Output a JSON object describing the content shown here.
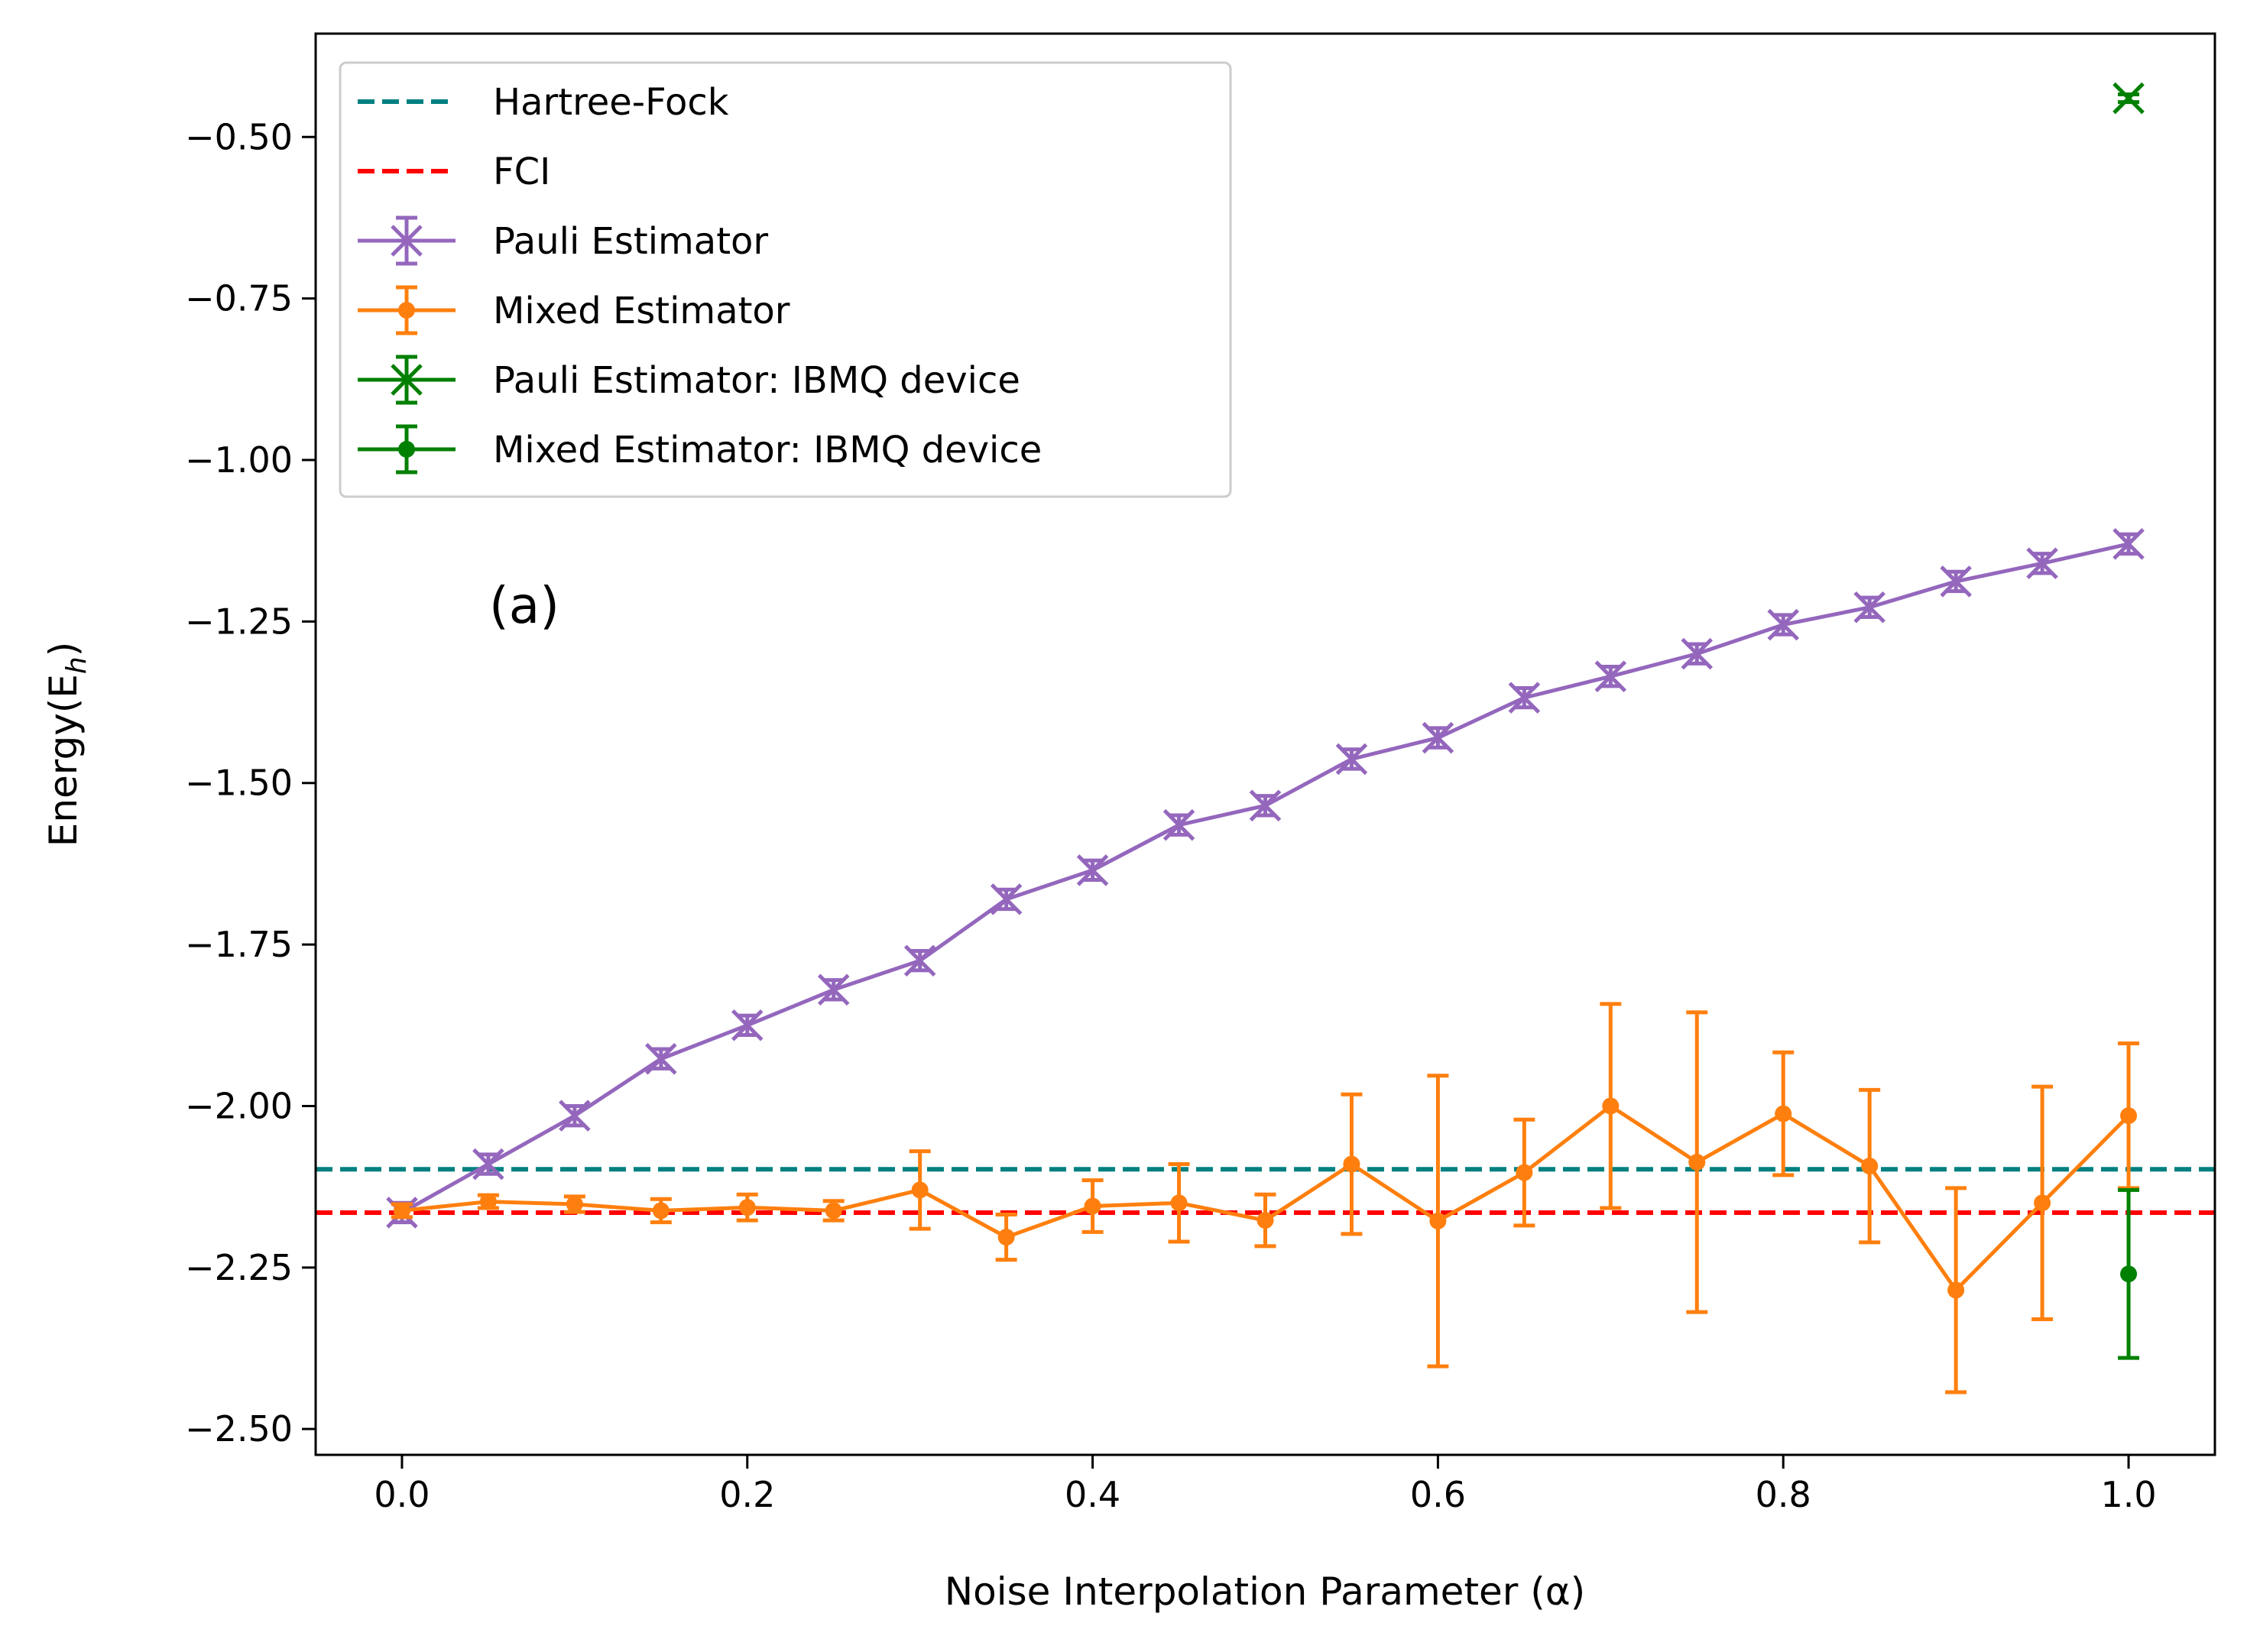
{
  "chart_data": {
    "type": "line",
    "title": "",
    "xlabel": "Noise Interpolation Parameter (α)",
    "ylabel_main": "Energy(E",
    "ylabel_sub": "h",
    "ylabel_close": ")",
    "annotation": "(a)",
    "xlim": [
      -0.05,
      1.05
    ],
    "ylim": [
      -2.54,
      -0.34
    ],
    "x_ticks": [
      0.0,
      0.2,
      0.4,
      0.6,
      0.8,
      1.0
    ],
    "x_tick_labels": [
      "0.0",
      "0.2",
      "0.4",
      "0.6",
      "0.8",
      "1.0"
    ],
    "y_ticks": [
      -0.5,
      -0.75,
      -1.0,
      -1.25,
      -1.5,
      -1.75,
      -2.0,
      -2.25,
      -2.5
    ],
    "y_tick_labels": [
      "−0.50",
      "−0.75",
      "−1.00",
      "−1.25",
      "−1.50",
      "−1.75",
      "−2.00",
      "−2.25",
      "−2.50"
    ],
    "grid": false,
    "legend_position": "top-left",
    "hlines": [
      {
        "name": "Hartree-Fock",
        "y": -2.098,
        "color": "#008080",
        "style": "dashed"
      },
      {
        "name": "FCI",
        "y": -2.165,
        "color": "#ff0000",
        "style": "dashed"
      }
    ],
    "series": [
      {
        "name": "Pauli Estimator",
        "color": "#9467bd",
        "marker": "x",
        "x": [
          0.0,
          0.05,
          0.1,
          0.15,
          0.2,
          0.25,
          0.3,
          0.35,
          0.4,
          0.45,
          0.5,
          0.55,
          0.6,
          0.65,
          0.7,
          0.75,
          0.8,
          0.85,
          0.9,
          0.95,
          1.0
        ],
        "y": [
          -2.165,
          -2.09,
          -2.015,
          -1.927,
          -1.875,
          -1.82,
          -1.775,
          -1.68,
          -1.635,
          -1.565,
          -1.535,
          -1.463,
          -1.43,
          -1.368,
          -1.335,
          -1.3,
          -1.255,
          -1.228,
          -1.188,
          -1.16,
          -1.13
        ],
        "yerr": [
          0.015,
          0.015,
          0.015,
          0.015,
          0.015,
          0.015,
          0.015,
          0.015,
          0.015,
          0.015,
          0.015,
          0.015,
          0.015,
          0.015,
          0.015,
          0.015,
          0.015,
          0.015,
          0.015,
          0.015,
          0.015
        ]
      },
      {
        "name": "Mixed Estimator",
        "color": "#ff7f0e",
        "marker": "dot",
        "x": [
          0.0,
          0.05,
          0.1,
          0.15,
          0.2,
          0.25,
          0.3,
          0.35,
          0.4,
          0.45,
          0.5,
          0.55,
          0.6,
          0.65,
          0.7,
          0.75,
          0.8,
          0.85,
          0.9,
          0.95,
          1.0
        ],
        "y": [
          -2.162,
          -2.148,
          -2.152,
          -2.162,
          -2.157,
          -2.162,
          -2.13,
          -2.203,
          -2.155,
          -2.15,
          -2.177,
          -2.09,
          -2.178,
          -2.103,
          -2.0,
          -2.087,
          -2.012,
          -2.093,
          -2.285,
          -2.15,
          -2.015
        ],
        "yerr": [
          0.01,
          0.01,
          0.012,
          0.018,
          0.02,
          0.015,
          0.06,
          0.035,
          0.04,
          0.06,
          0.04,
          0.108,
          0.225,
          0.082,
          0.158,
          0.232,
          0.095,
          0.118,
          0.158,
          0.18,
          0.112
        ]
      },
      {
        "name": "Pauli Estimator: IBMQ device",
        "color": "#008000",
        "marker": "x",
        "x": [
          1.0
        ],
        "y": [
          -0.44
        ],
        "yerr": [
          0.006
        ]
      },
      {
        "name": "Mixed Estimator: IBMQ device",
        "color": "#008000",
        "marker": "dot",
        "x": [
          1.0
        ],
        "y": [
          -2.26
        ],
        "yerr": [
          0.13
        ]
      }
    ]
  }
}
